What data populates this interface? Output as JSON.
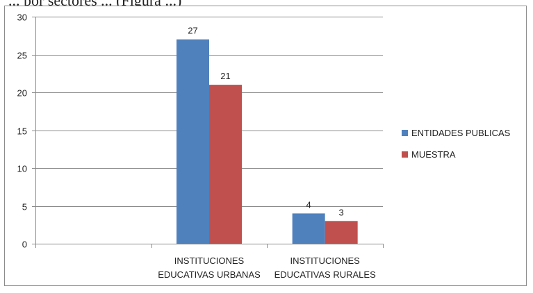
{
  "caption_fragment": "... por sectores ... (Figura ...)",
  "chart_data": {
    "type": "bar",
    "categories": [
      "",
      "INSTITUCIONES EDUCATIVAS URBANAS",
      "INSTITUCIONES EDUCATIVAS RURALES"
    ],
    "category_lines": [
      [
        "",
        ""
      ],
      [
        "INSTITUCIONES",
        "EDUCATIVAS URBANAS"
      ],
      [
        "INSTITUCIONES",
        "EDUCATIVAS RURALES"
      ]
    ],
    "series": [
      {
        "name": "ENTIDADES PUBLICAS",
        "values": [
          null,
          27,
          4
        ],
        "color": "#4f81bd"
      },
      {
        "name": "MUESTRA",
        "values": [
          null,
          21,
          3
        ],
        "color": "#c0504d"
      }
    ],
    "ylim": [
      0,
      30
    ],
    "yticks": [
      0,
      5,
      10,
      15,
      20,
      25,
      30
    ],
    "grid": true,
    "legend": "right",
    "title": "",
    "xlabel": "",
    "ylabel": ""
  }
}
